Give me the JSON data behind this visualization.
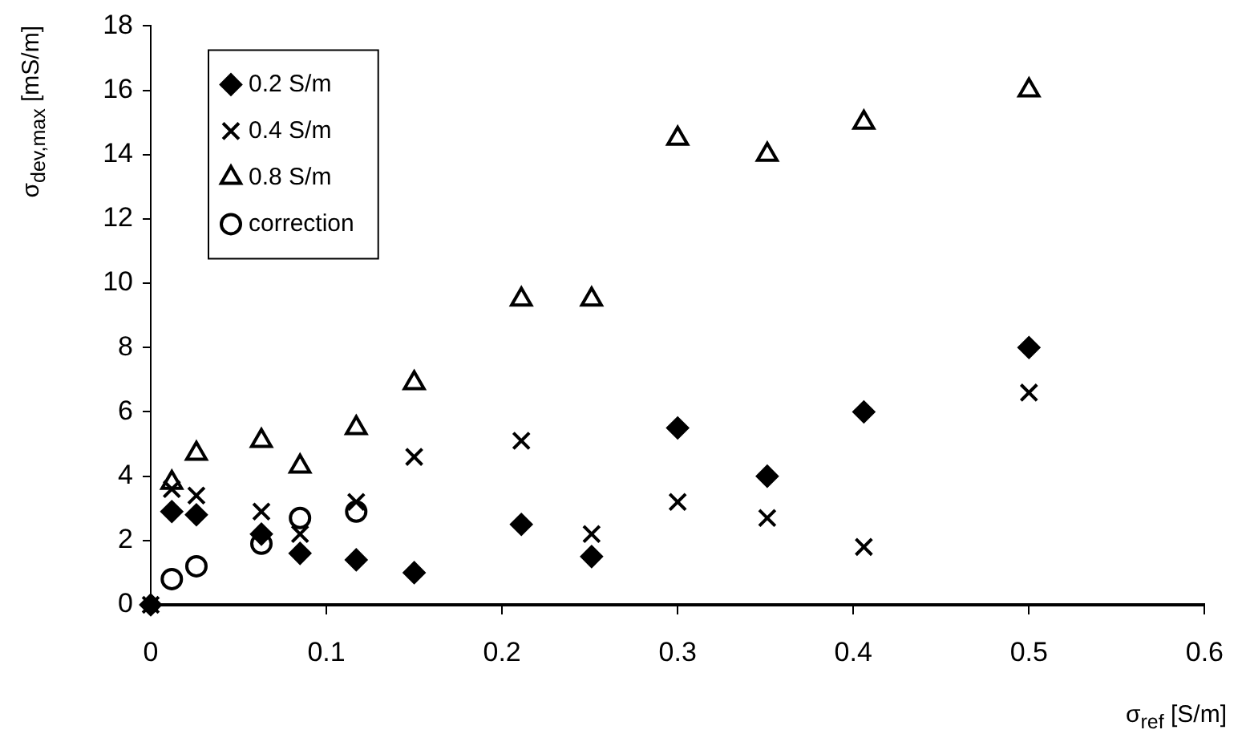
{
  "chart_data": {
    "type": "scatter",
    "xlabel": "σ$_{ref}$ [S/m]",
    "ylabel": "σ$_{dev,max}$ [mS/m]",
    "xlim": [
      0,
      0.6
    ],
    "xticks": [
      0,
      0.1,
      0.2,
      0.3,
      0.4,
      0.5,
      0.6
    ],
    "ylim": [
      0,
      18
    ],
    "yticks": [
      0,
      2,
      4,
      6,
      8,
      10,
      12,
      14,
      16,
      18
    ],
    "grid": false,
    "legend": "top left",
    "series": [
      {
        "name": "0.2 S/m",
        "color": "#000000",
        "marker": "diamond",
        "x": [
          0,
          0.012,
          0.026,
          0.063,
          0.085,
          0.117,
          0.15,
          0.211,
          0.251,
          0.3,
          0.351,
          0.406,
          0.5
        ],
        "values": [
          0,
          2.9,
          2.8,
          2.2,
          1.6,
          1.4,
          1.0,
          2.5,
          1.5,
          5.5,
          4.0,
          6.0,
          8.0
        ]
      },
      {
        "name": "0.4 S/m",
        "color": "#000000",
        "marker": "cross",
        "x": [
          0,
          0.012,
          0.026,
          0.063,
          0.085,
          0.117,
          0.15,
          0.211,
          0.251,
          0.3,
          0.351,
          0.406,
          0.5
        ],
        "values": [
          0,
          3.6,
          3.4,
          2.9,
          2.2,
          3.2,
          4.6,
          5.1,
          2.2,
          3.2,
          2.7,
          1.8,
          6.6
        ]
      },
      {
        "name": "0.8 S/m",
        "color": "#000000",
        "marker": "triangle",
        "x": [
          0.012,
          0.026,
          0.063,
          0.085,
          0.117,
          0.15,
          0.211,
          0.251,
          0.3,
          0.351,
          0.406,
          0.5
        ],
        "values": [
          3.8,
          4.7,
          5.1,
          4.3,
          5.5,
          6.9,
          9.5,
          9.5,
          14.5,
          14.0,
          15.0,
          16.0
        ]
      },
      {
        "name": "correction",
        "color": "#000000",
        "marker": "circle",
        "x": [
          0.012,
          0.026,
          0.063,
          0.085,
          0.117
        ],
        "values": [
          0.8,
          1.2,
          1.9,
          2.7,
          2.9
        ]
      }
    ]
  }
}
